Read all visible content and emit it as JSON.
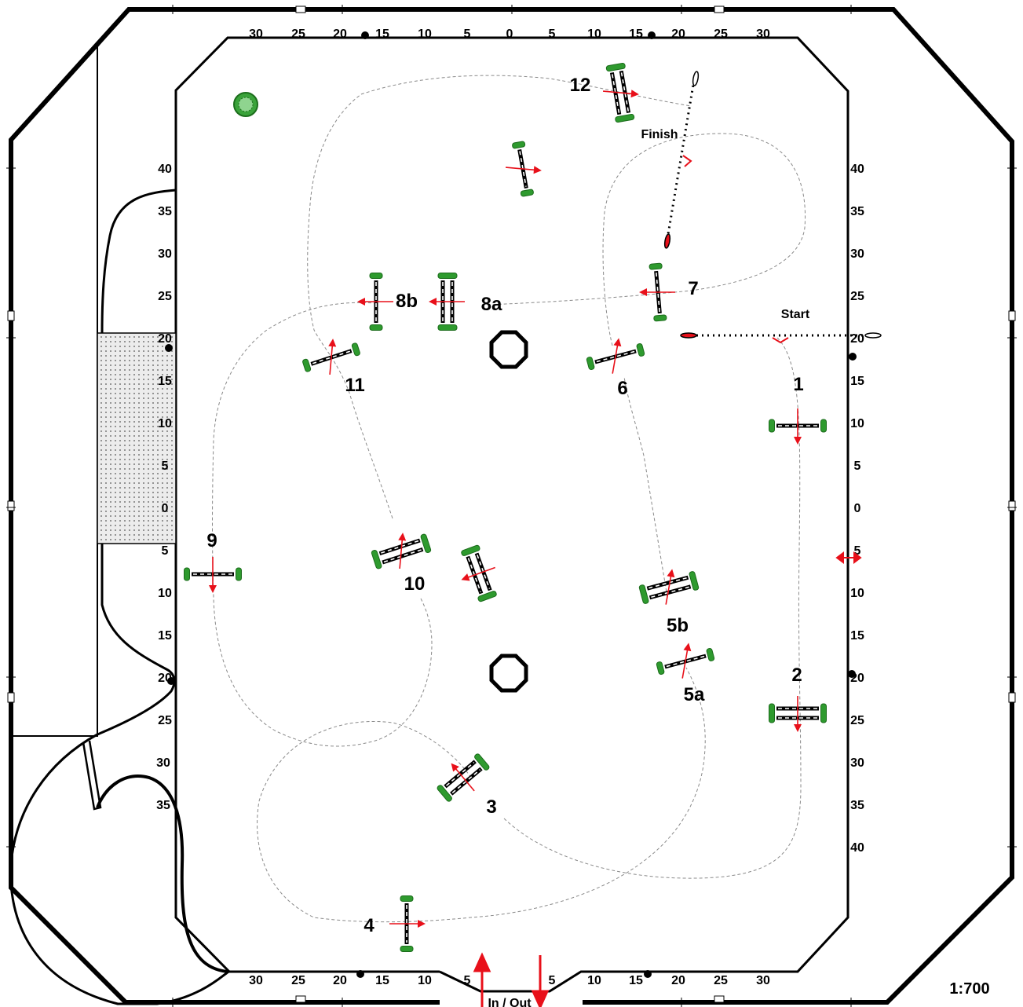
{
  "course": {
    "scale": "1:700",
    "start_label": "Start",
    "finish_label": "Finish",
    "gate_label": "In / Out",
    "ruler_top": [
      "30",
      "25",
      "20",
      "15",
      "10",
      "5",
      "0",
      "5",
      "10",
      "15",
      "20",
      "25",
      "30"
    ],
    "ruler_bottom": [
      "30",
      "25",
      "20",
      "15",
      "10",
      "5",
      "5",
      "10",
      "15",
      "20",
      "25",
      "30"
    ],
    "ruler_left": [
      "40",
      "35",
      "30",
      "25",
      "20",
      "15",
      "10",
      "5",
      "0",
      "5",
      "10",
      "15",
      "20",
      "25",
      "30",
      "35"
    ],
    "ruler_right": [
      "40",
      "35",
      "30",
      "25",
      "20",
      "15",
      "10",
      "5",
      "0",
      "5",
      "10",
      "15",
      "20",
      "25",
      "30",
      "35",
      "40"
    ],
    "fences": [
      {
        "id": "1",
        "label": "1"
      },
      {
        "id": "2",
        "label": "2"
      },
      {
        "id": "3",
        "label": "3"
      },
      {
        "id": "4",
        "label": "4"
      },
      {
        "id": "5a",
        "label": "5a"
      },
      {
        "id": "5b",
        "label": "5b"
      },
      {
        "id": "6",
        "label": "6"
      },
      {
        "id": "7",
        "label": "7"
      },
      {
        "id": "8a",
        "label": "8a"
      },
      {
        "id": "8b",
        "label": "8b"
      },
      {
        "id": "9",
        "label": "9"
      },
      {
        "id": "10",
        "label": "10"
      },
      {
        "id": "11",
        "label": "11"
      },
      {
        "id": "12",
        "label": "12"
      }
    ],
    "colors": {
      "arrow": "#e8101a",
      "foliage": "#2e9a2e",
      "rail_dark": "#000000",
      "path": "#8a8a8a",
      "sand": "#e6e6e6"
    }
  }
}
